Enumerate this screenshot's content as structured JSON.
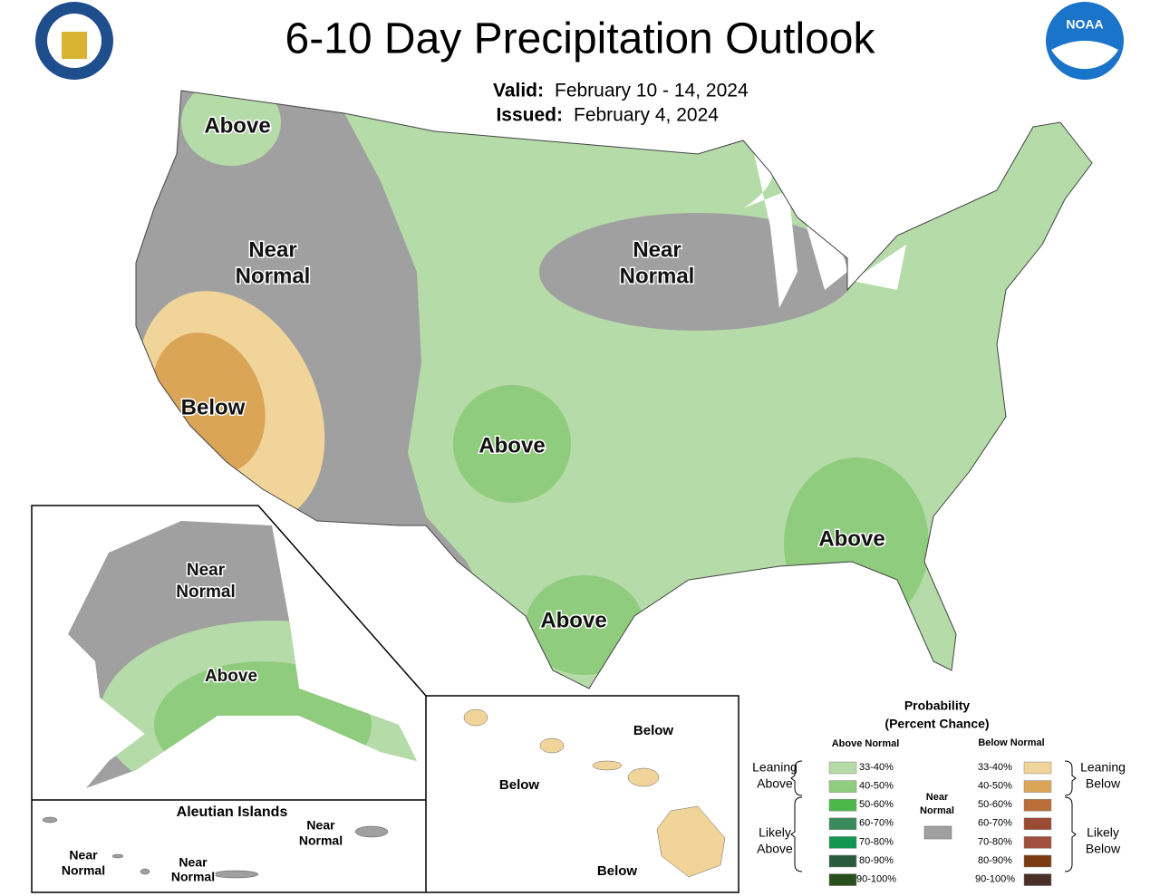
{
  "header": {
    "title": "6-10 Day Precipitation Outlook",
    "valid_label": "Valid:",
    "valid": "February 10 - 14, 2024",
    "issued_label": "Issued:",
    "issued": "February 4, 2024",
    "noaa": "NOAA"
  },
  "conus": {
    "labels": [
      [
        "Above"
      ],
      [
        "Near",
        "Normal"
      ],
      [
        "Near",
        "Normal"
      ],
      [
        "Below"
      ],
      [
        "Above"
      ],
      [
        "Above"
      ],
      [
        "Above"
      ]
    ]
  },
  "alaska": {
    "labels": [
      [
        "Near",
        "Normal"
      ],
      [
        "Above"
      ]
    ]
  },
  "aleutians": {
    "title": "Aleutian Islands",
    "labels": [
      [
        "Near",
        "Normal"
      ],
      [
        "Near",
        "Normal"
      ],
      [
        "Near",
        "Normal"
      ]
    ]
  },
  "hawaii": {
    "labels": [
      [
        "Below"
      ],
      [
        "Below"
      ],
      [
        "Below"
      ]
    ]
  },
  "legend": {
    "title": "Probability",
    "subtitle": "(Percent Chance)",
    "above_heading": "Above Normal",
    "below_heading": "Below Normal",
    "near": {
      "label": [
        "Near",
        "Normal"
      ],
      "color": "#a0a0a0"
    },
    "groups": [
      [
        "Leaning",
        "Above"
      ],
      [
        "Likely",
        "Above"
      ],
      [
        "Leaning",
        "Below"
      ],
      [
        "Likely",
        "Below"
      ]
    ],
    "above": [
      {
        "range": "33-40%",
        "color": "#b5dba9"
      },
      {
        "range": "40-50%",
        "color": "#8fcc7d"
      },
      {
        "range": "50-60%",
        "color": "#4cb84a"
      },
      {
        "range": "60-70%",
        "color": "#3b8a5c"
      },
      {
        "range": "70-80%",
        "color": "#129650"
      },
      {
        "range": "80-90%",
        "color": "#285c3c"
      },
      {
        "range": "90-100%",
        "color": "#28501e"
      }
    ],
    "below": [
      {
        "range": "33-40%",
        "color": "#f0d49a"
      },
      {
        "range": "40-50%",
        "color": "#dba557"
      },
      {
        "range": "50-60%",
        "color": "#bb6e3a"
      },
      {
        "range": "60-70%",
        "color": "#9b4a33"
      },
      {
        "range": "70-80%",
        "color": "#a0503c"
      },
      {
        "range": "80-90%",
        "color": "#7a3c10"
      },
      {
        "range": "90-100%",
        "color": "#4a3028"
      }
    ]
  }
}
